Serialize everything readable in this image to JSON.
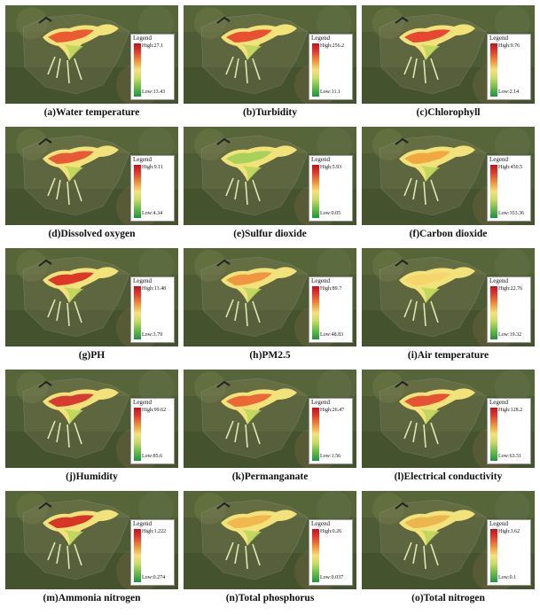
{
  "legend_title": "Legend",
  "colors": {
    "high": "#c8101b",
    "mid": "#f8e07a",
    "low": "#1a9641"
  },
  "panels": [
    {
      "caption": "(a)Water temperature",
      "high": "High:27.1",
      "low": "Low:13.43",
      "hot": "#e94c2b"
    },
    {
      "caption": "(b)Turbidity",
      "high": "High:256.2",
      "low": "Low:11.1",
      "hot": "#e8402a"
    },
    {
      "caption": "(c)Chlorophyll",
      "high": "High:9.76",
      "low": "Low:2.14",
      "hot": "#e3362a"
    },
    {
      "caption": "(d)Dissolved oxygen",
      "high": "High:9.11",
      "low": "Low:4.34",
      "hot": "#e74b2e"
    },
    {
      "caption": "(e)Sulfur dioxide",
      "high": "High:5.93",
      "low": "Low:0.05",
      "hot": "#9fcf56"
    },
    {
      "caption": "(f)Carbon dioxide",
      "high": "High:450.5",
      "low": "Low:353.36",
      "hot": "#f2a23a"
    },
    {
      "caption": "(g)PH",
      "high": "High:13.48",
      "low": "Low:3.79",
      "hot": "#d8261f"
    },
    {
      "caption": "(h)PM2.5",
      "high": "High:89.7",
      "low": "Low:48.83",
      "hot": "#f08d3a"
    },
    {
      "caption": "(i)Air temperature",
      "high": "High:22.76",
      "low": "Low:19.32",
      "hot": "#f5d46a"
    },
    {
      "caption": "(j)Humidity",
      "high": "High:99.62",
      "low": "Low:85.6",
      "hot": "#d32b2a"
    },
    {
      "caption": "(k)Permanganate",
      "high": "High:26.47",
      "low": "Low:1.56",
      "hot": "#ea5a2f"
    },
    {
      "caption": "(l)Electrical conductivity",
      "high": "High:128.2",
      "low": "Low:63.51",
      "hot": "#e6432c"
    },
    {
      "caption": "(m)Ammonia nitrogen",
      "high": "High:1.222",
      "low": "Low:0.274",
      "hot": "#d4221c"
    },
    {
      "caption": "(n)Total phosphorus",
      "high": "High:0.26",
      "low": "Low:0.037",
      "hot": "#f2b24a"
    },
    {
      "caption": "(o)Total nitrogen",
      "high": "High:3.62",
      "low": "Low:0.1",
      "hot": "#eab04a"
    }
  ]
}
